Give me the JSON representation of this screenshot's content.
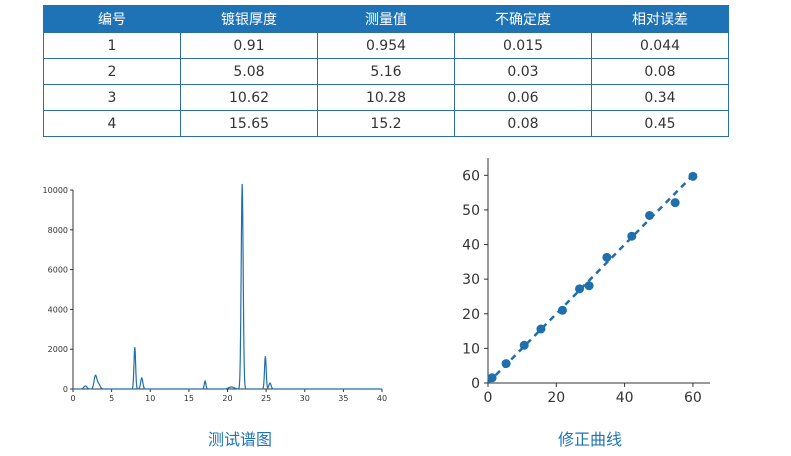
{
  "table": {
    "headers": [
      "编号",
      "镀银厚度",
      "测量值",
      "不确定度",
      "相对误差"
    ],
    "rows": [
      [
        "1",
        "0.91",
        "0.954",
        "0.015",
        "0.044"
      ],
      [
        "2",
        "5.08",
        "5.16",
        "0.03",
        "0.08"
      ],
      [
        "3",
        "10.62",
        "10.28",
        "0.06",
        "0.34"
      ],
      [
        "4",
        "15.65",
        "15.2",
        "0.08",
        "0.45"
      ]
    ]
  },
  "captions": {
    "spectrum": "测试谱图",
    "correction": "修正曲线"
  },
  "chart_data": [
    {
      "type": "line",
      "title": "测试谱图",
      "xlim": [
        0,
        40
      ],
      "ylim": [
        0,
        10000
      ],
      "xticks": [
        0,
        5,
        10,
        15,
        20,
        25,
        30,
        35,
        40
      ],
      "yticks": [
        0,
        2000,
        4000,
        6000,
        8000,
        10000
      ],
      "grid": false,
      "color": "#1f6fad",
      "peaks": [
        {
          "x": 1.6,
          "height": 150,
          "width": 0.3
        },
        {
          "x": 2.9,
          "height": 650,
          "width": 0.25
        },
        {
          "x": 3.3,
          "height": 250,
          "width": 0.3
        },
        {
          "x": 8.0,
          "height": 2100,
          "width": 0.15
        },
        {
          "x": 8.9,
          "height": 550,
          "width": 0.2
        },
        {
          "x": 17.1,
          "height": 400,
          "width": 0.15
        },
        {
          "x": 20.5,
          "height": 100,
          "width": 0.5
        },
        {
          "x": 21.9,
          "height": 10300,
          "width": 0.18
        },
        {
          "x": 24.9,
          "height": 1650,
          "width": 0.15
        },
        {
          "x": 25.5,
          "height": 300,
          "width": 0.2
        }
      ],
      "x": [
        0,
        1,
        1.4,
        1.6,
        1.8,
        2.2,
        2.6,
        2.9,
        3.1,
        3.3,
        3.6,
        4.0,
        7.5,
        7.8,
        8.0,
        8.2,
        8.5,
        8.7,
        8.9,
        9.1,
        9.4,
        16.8,
        17.1,
        17.4,
        19.5,
        20.5,
        21.4,
        21.6,
        21.8,
        21.9,
        22.0,
        22.2,
        22.5,
        24.5,
        24.7,
        24.9,
        25.1,
        25.3,
        25.5,
        25.8,
        26.3,
        40
      ],
      "y": [
        0,
        0,
        60,
        150,
        60,
        80,
        400,
        650,
        400,
        250,
        90,
        0,
        0,
        300,
        2100,
        300,
        40,
        200,
        550,
        200,
        20,
        0,
        400,
        0,
        0,
        100,
        200,
        1500,
        8000,
        10300,
        8000,
        1500,
        200,
        100,
        500,
        1650,
        500,
        200,
        300,
        100,
        0,
        0
      ]
    },
    {
      "type": "scatter",
      "title": "修正曲线",
      "xlim": [
        0,
        65
      ],
      "ylim": [
        0,
        65
      ],
      "xticks": [
        0,
        20,
        40,
        60
      ],
      "yticks": [
        0,
        10,
        20,
        30,
        40,
        50,
        60
      ],
      "grid": false,
      "color": "#1f6fad",
      "points": [
        [
          1.2,
          1.5
        ],
        [
          5.3,
          5.6
        ],
        [
          10.6,
          10.9
        ],
        [
          15.5,
          15.6
        ],
        [
          21.8,
          21.0
        ],
        [
          26.8,
          27.2
        ],
        [
          29.6,
          28.1
        ],
        [
          34.8,
          36.3
        ],
        [
          42.1,
          42.4
        ],
        [
          47.3,
          48.4
        ],
        [
          54.8,
          52.1
        ],
        [
          60.0,
          59.7
        ]
      ],
      "fit_line": [
        [
          0,
          0
        ],
        [
          60,
          60
        ]
      ]
    }
  ]
}
